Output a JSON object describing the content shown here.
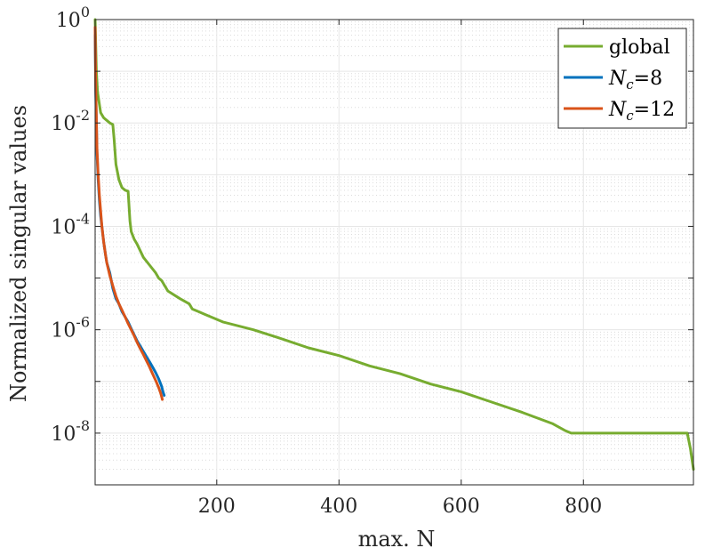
{
  "chart_data": {
    "type": "line",
    "title": "",
    "xlabel": "max. N",
    "ylabel": "Normalized singular values",
    "xlim": [
      1,
      980
    ],
    "ylim_exp": [
      -9,
      0
    ],
    "y_scale": "log",
    "grid": true,
    "minor_grid": true,
    "legend_position": "top-right",
    "x_ticks": [
      200,
      400,
      600,
      800
    ],
    "x_tick_labels": [
      "200",
      "400",
      "600",
      "800"
    ],
    "y_ticks": [
      -8,
      -6,
      -4,
      -2,
      0
    ],
    "y_tick_labels": [
      {
        "base": "10",
        "exp": "-8"
      },
      {
        "base": "10",
        "exp": "-6"
      },
      {
        "base": "10",
        "exp": "-4"
      },
      {
        "base": "10",
        "exp": "-2"
      },
      {
        "base": "10",
        "exp": "0"
      }
    ],
    "series": [
      {
        "name": "global",
        "legend": {
          "main": "global",
          "sub": ""
        },
        "color": "#77AC30",
        "x": [
          1,
          3,
          5,
          10,
          15,
          20,
          25,
          30,
          32,
          35,
          40,
          45,
          50,
          55,
          58,
          60,
          65,
          70,
          80,
          90,
          100,
          105,
          110,
          120,
          140,
          155,
          160,
          170,
          180,
          200,
          210,
          260,
          300,
          350,
          400,
          450,
          500,
          550,
          600,
          650,
          700,
          750,
          770,
          780,
          800,
          850,
          900,
          950,
          970,
          975,
          980
        ],
        "y_log10": [
          0,
          -1.0,
          -1.4,
          -1.8,
          -1.9,
          -1.95,
          -2.0,
          -2.03,
          -2.3,
          -2.8,
          -3.1,
          -3.25,
          -3.3,
          -3.32,
          -3.9,
          -4.1,
          -4.25,
          -4.35,
          -4.6,
          -4.75,
          -4.9,
          -5.0,
          -5.05,
          -5.25,
          -5.4,
          -5.5,
          -5.6,
          -5.65,
          -5.7,
          -5.8,
          -5.85,
          -6.0,
          -6.15,
          -6.35,
          -6.5,
          -6.7,
          -6.85,
          -7.05,
          -7.2,
          -7.4,
          -7.6,
          -7.82,
          -7.95,
          -8.0,
          -8.0,
          -8.0,
          -8.0,
          -8.0,
          -8.0,
          -8.3,
          -8.7
        ]
      },
      {
        "name": "N_c=8",
        "legend": {
          "main": "N",
          "sub": "c",
          "suffix": "=8"
        },
        "color": "#0072BD",
        "x": [
          1,
          2,
          3,
          4,
          6,
          8,
          10,
          12,
          15,
          18,
          20,
          25,
          30,
          35,
          40,
          45,
          50,
          55,
          60,
          65,
          70,
          75,
          80,
          85,
          90,
          95,
          100,
          105,
          110,
          112,
          114
        ],
        "y_log10": [
          -0.3,
          -1.4,
          -2.0,
          -2.6,
          -3.1,
          -3.5,
          -3.8,
          -4.0,
          -4.3,
          -4.55,
          -4.7,
          -4.9,
          -5.2,
          -5.4,
          -5.5,
          -5.65,
          -5.75,
          -5.85,
          -5.98,
          -6.1,
          -6.22,
          -6.32,
          -6.42,
          -6.52,
          -6.62,
          -6.72,
          -6.83,
          -6.95,
          -7.1,
          -7.2,
          -7.27
        ]
      },
      {
        "name": "N_c=12",
        "legend": {
          "main": "N",
          "sub": "c",
          "suffix": "=12"
        },
        "color": "#D95319",
        "x": [
          1,
          2,
          3,
          4,
          6,
          8,
          10,
          12,
          15,
          18,
          20,
          25,
          30,
          35,
          40,
          45,
          50,
          55,
          60,
          65,
          70,
          75,
          80,
          85,
          90,
          95,
          100,
          105,
          108,
          110,
          111
        ],
        "y_log10": [
          -0.15,
          -1.3,
          -1.9,
          -2.5,
          -3.0,
          -3.4,
          -3.7,
          -4.0,
          -4.3,
          -4.55,
          -4.7,
          -4.95,
          -5.15,
          -5.35,
          -5.5,
          -5.62,
          -5.75,
          -5.88,
          -6.0,
          -6.12,
          -6.25,
          -6.37,
          -6.48,
          -6.6,
          -6.72,
          -6.85,
          -6.98,
          -7.12,
          -7.22,
          -7.3,
          -7.35
        ]
      }
    ]
  }
}
